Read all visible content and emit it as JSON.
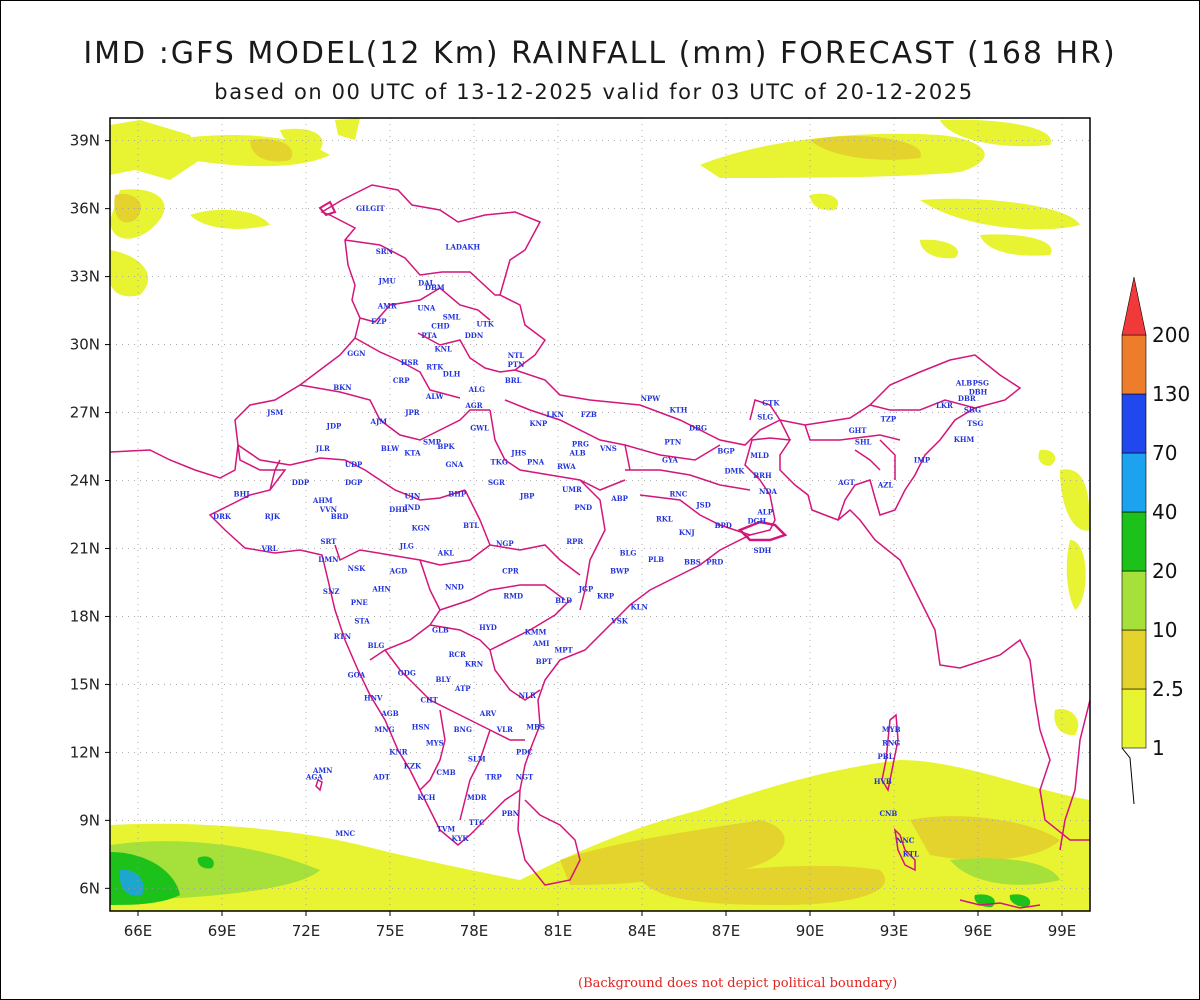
{
  "title": "IMD :GFS MODEL(12 Km) RAINFALL (mm) FORECAST (168 HR)",
  "subtitle": "based on 00 UTC of 13-12-2025 valid for 03 UTC of 20-12-2025",
  "footnote": "(Background does not depict political boundary)",
  "map": {
    "lon_range": [
      65,
      100
    ],
    "lat_range": [
      5,
      40
    ],
    "lon_ticks": [
      "66E",
      "69E",
      "72E",
      "75E",
      "78E",
      "81E",
      "84E",
      "87E",
      "90E",
      "93E",
      "96E",
      "99E"
    ],
    "lat_ticks": [
      "39N",
      "36N",
      "33N",
      "30N",
      "27N",
      "24N",
      "21N",
      "18N",
      "15N",
      "12N",
      "9N",
      "6N"
    ],
    "grid": true,
    "boundary_color": "#d4157a",
    "label_color": "#2233dd"
  },
  "legend": {
    "labels": [
      "1",
      "2.5",
      "10",
      "20",
      "40",
      "70",
      "130",
      "200"
    ],
    "colors": [
      "#e8f432",
      "#e3d32c",
      "#a6e03b",
      "#1cc21a",
      "#1da2ef",
      "#2148ee",
      "#ee7d2b",
      "#f03a3a"
    ]
  },
  "stations": [
    {
      "name": "GILGIT",
      "lon": 74.3,
      "lat": 35.9
    },
    {
      "name": "LADAKH",
      "lon": 77.6,
      "lat": 34.2
    },
    {
      "name": "SRN",
      "lon": 74.8,
      "lat": 34.0
    },
    {
      "name": "JMU",
      "lon": 74.9,
      "lat": 32.7
    },
    {
      "name": "DAL",
      "lon": 76.3,
      "lat": 32.6
    },
    {
      "name": "DBM",
      "lon": 76.6,
      "lat": 32.4
    },
    {
      "name": "AMR",
      "lon": 74.9,
      "lat": 31.6
    },
    {
      "name": "UNA",
      "lon": 76.3,
      "lat": 31.5
    },
    {
      "name": "SML",
      "lon": 77.2,
      "lat": 31.1
    },
    {
      "name": "FZP",
      "lon": 74.6,
      "lat": 30.9
    },
    {
      "name": "CHD",
      "lon": 76.8,
      "lat": 30.7
    },
    {
      "name": "UTK",
      "lon": 78.4,
      "lat": 30.8
    },
    {
      "name": "PTA",
      "lon": 76.4,
      "lat": 30.3
    },
    {
      "name": "DDN",
      "lon": 78.0,
      "lat": 30.3
    },
    {
      "name": "KNL",
      "lon": 76.9,
      "lat": 29.7
    },
    {
      "name": "GGN",
      "lon": 73.8,
      "lat": 29.5
    },
    {
      "name": "NTL",
      "lon": 79.5,
      "lat": 29.4
    },
    {
      "name": "PTN",
      "lon": 79.5,
      "lat": 29.0
    },
    {
      "name": "HSR",
      "lon": 75.7,
      "lat": 29.1
    },
    {
      "name": "RTK",
      "lon": 76.6,
      "lat": 28.9
    },
    {
      "name": "DLH",
      "lon": 77.2,
      "lat": 28.6
    },
    {
      "name": "BRL",
      "lon": 79.4,
      "lat": 28.3
    },
    {
      "name": "BKN",
      "lon": 73.3,
      "lat": 28.0
    },
    {
      "name": "CRP",
      "lon": 75.4,
      "lat": 28.3
    },
    {
      "name": "ALG",
      "lon": 78.1,
      "lat": 27.9
    },
    {
      "name": "ALW",
      "lon": 76.6,
      "lat": 27.6
    },
    {
      "name": "AGR",
      "lon": 78.0,
      "lat": 27.2
    },
    {
      "name": "NPW",
      "lon": 84.3,
      "lat": 27.5
    },
    {
      "name": "GTK",
      "lon": 88.6,
      "lat": 27.3
    },
    {
      "name": "JSM",
      "lon": 70.9,
      "lat": 26.9
    },
    {
      "name": "JPR",
      "lon": 75.8,
      "lat": 26.9
    },
    {
      "name": "LKN",
      "lon": 80.9,
      "lat": 26.8
    },
    {
      "name": "FZB",
      "lon": 82.1,
      "lat": 26.8
    },
    {
      "name": "KTH",
      "lon": 85.3,
      "lat": 27.0
    },
    {
      "name": "SLG",
      "lon": 88.4,
      "lat": 26.7
    },
    {
      "name": "JDP",
      "lon": 73.0,
      "lat": 26.3
    },
    {
      "name": "AJM",
      "lon": 74.6,
      "lat": 26.5
    },
    {
      "name": "KNP",
      "lon": 80.3,
      "lat": 26.4
    },
    {
      "name": "GWL",
      "lon": 78.2,
      "lat": 26.2
    },
    {
      "name": "DBG",
      "lon": 86.0,
      "lat": 26.2
    },
    {
      "name": "GHT",
      "lon": 91.7,
      "lat": 26.1
    },
    {
      "name": "SHL",
      "lon": 91.9,
      "lat": 25.6
    },
    {
      "name": "TZP",
      "lon": 92.8,
      "lat": 26.6
    },
    {
      "name": "ALB",
      "lon": 95.5,
      "lat": 28.2
    },
    {
      "name": "PSG",
      "lon": 96.1,
      "lat": 28.2
    },
    {
      "name": "DBR",
      "lon": 95.6,
      "lat": 27.5
    },
    {
      "name": "DBH",
      "lon": 96.0,
      "lat": 27.8
    },
    {
      "name": "LKR",
      "lon": 94.8,
      "lat": 27.2
    },
    {
      "name": "SBG",
      "lon": 95.8,
      "lat": 27.0
    },
    {
      "name": "TSG",
      "lon": 95.9,
      "lat": 26.4
    },
    {
      "name": "KHM",
      "lon": 95.5,
      "lat": 25.7
    },
    {
      "name": "IMP",
      "lon": 94.0,
      "lat": 24.8
    },
    {
      "name": "AZL",
      "lon": 92.7,
      "lat": 23.7
    },
    {
      "name": "AGT",
      "lon": 91.3,
      "lat": 23.8
    },
    {
      "name": "SMP",
      "lon": 76.5,
      "lat": 25.6
    },
    {
      "name": "BPK",
      "lon": 77.0,
      "lat": 25.4
    },
    {
      "name": "PRG",
      "lon": 81.8,
      "lat": 25.5
    },
    {
      "name": "ALB",
      "lon": 81.7,
      "lat": 25.1
    },
    {
      "name": "VNS",
      "lon": 82.8,
      "lat": 25.3
    },
    {
      "name": "PTN",
      "lon": 85.1,
      "lat": 25.6
    },
    {
      "name": "BGP",
      "lon": 87.0,
      "lat": 25.2
    },
    {
      "name": "MLD",
      "lon": 88.2,
      "lat": 25.0
    },
    {
      "name": "JLR",
      "lon": 72.6,
      "lat": 25.3
    },
    {
      "name": "BLW",
      "lon": 75.0,
      "lat": 25.3
    },
    {
      "name": "KTA",
      "lon": 75.8,
      "lat": 25.1
    },
    {
      "name": "JHS",
      "lon": 79.6,
      "lat": 25.1
    },
    {
      "name": "TKG",
      "lon": 78.9,
      "lat": 24.7
    },
    {
      "name": "PNA",
      "lon": 80.2,
      "lat": 24.7
    },
    {
      "name": "RWA",
      "lon": 81.3,
      "lat": 24.5
    },
    {
      "name": "GYA",
      "lon": 85.0,
      "lat": 24.8
    },
    {
      "name": "DMK",
      "lon": 87.3,
      "lat": 24.3
    },
    {
      "name": "BRH",
      "lon": 88.3,
      "lat": 24.1
    },
    {
      "name": "UDP",
      "lon": 73.7,
      "lat": 24.6
    },
    {
      "name": "GNA",
      "lon": 77.3,
      "lat": 24.6
    },
    {
      "name": "SGR",
      "lon": 78.8,
      "lat": 23.8
    },
    {
      "name": "DDP",
      "lon": 71.8,
      "lat": 23.8
    },
    {
      "name": "DGP",
      "lon": 73.7,
      "lat": 23.8
    },
    {
      "name": "NDA",
      "lon": 88.5,
      "lat": 23.4
    },
    {
      "name": "BHJ",
      "lon": 69.7,
      "lat": 23.3
    },
    {
      "name": "UJN",
      "lon": 75.8,
      "lat": 23.2
    },
    {
      "name": "BHP",
      "lon": 77.4,
      "lat": 23.3
    },
    {
      "name": "JBP",
      "lon": 79.9,
      "lat": 23.2
    },
    {
      "name": "UMR",
      "lon": 81.5,
      "lat": 23.5
    },
    {
      "name": "ABP",
      "lon": 83.2,
      "lat": 23.1
    },
    {
      "name": "RNC",
      "lon": 85.3,
      "lat": 23.3
    },
    {
      "name": "AHM",
      "lon": 72.6,
      "lat": 23.0
    },
    {
      "name": "DHR",
      "lon": 75.3,
      "lat": 22.6
    },
    {
      "name": "IND",
      "lon": 75.8,
      "lat": 22.7
    },
    {
      "name": "PND",
      "lon": 81.9,
      "lat": 22.7
    },
    {
      "name": "JSD",
      "lon": 86.2,
      "lat": 22.8
    },
    {
      "name": "VVN",
      "lon": 72.8,
      "lat": 22.6
    },
    {
      "name": "BRD",
      "lon": 73.2,
      "lat": 22.3
    },
    {
      "name": "DRK",
      "lon": 69.0,
      "lat": 22.3
    },
    {
      "name": "RJK",
      "lon": 70.8,
      "lat": 22.3
    },
    {
      "name": "RKL",
      "lon": 84.8,
      "lat": 22.2
    },
    {
      "name": "ALP",
      "lon": 88.4,
      "lat": 22.5
    },
    {
      "name": "DGH",
      "lon": 88.1,
      "lat": 22.1
    },
    {
      "name": "KGN",
      "lon": 76.1,
      "lat": 21.8
    },
    {
      "name": "BTL",
      "lon": 77.9,
      "lat": 21.9
    },
    {
      "name": "KNJ",
      "lon": 85.6,
      "lat": 21.6
    },
    {
      "name": "BPD",
      "lon": 86.9,
      "lat": 21.9
    },
    {
      "name": "SRT",
      "lon": 72.8,
      "lat": 21.2
    },
    {
      "name": "JLG",
      "lon": 75.6,
      "lat": 21.0
    },
    {
      "name": "NGP",
      "lon": 79.1,
      "lat": 21.1
    },
    {
      "name": "RPR",
      "lon": 81.6,
      "lat": 21.2
    },
    {
      "name": "SDH",
      "lon": 88.3,
      "lat": 20.8
    },
    {
      "name": "VRL",
      "lon": 70.7,
      "lat": 20.9
    },
    {
      "name": "AKL",
      "lon": 77.0,
      "lat": 20.7
    },
    {
      "name": "BLG",
      "lon": 83.5,
      "lat": 20.7
    },
    {
      "name": "PLB",
      "lon": 84.5,
      "lat": 20.4
    },
    {
      "name": "BBS",
      "lon": 85.8,
      "lat": 20.3
    },
    {
      "name": "PRD",
      "lon": 86.6,
      "lat": 20.3
    },
    {
      "name": "DMN",
      "lon": 72.8,
      "lat": 20.4
    },
    {
      "name": "NSK",
      "lon": 73.8,
      "lat": 20.0
    },
    {
      "name": "AGD",
      "lon": 75.3,
      "lat": 19.9
    },
    {
      "name": "CPR",
      "lon": 79.3,
      "lat": 19.9
    },
    {
      "name": "BWP",
      "lon": 83.2,
      "lat": 19.9
    },
    {
      "name": "NND",
      "lon": 77.3,
      "lat": 19.2
    },
    {
      "name": "AHN",
      "lon": 74.7,
      "lat": 19.1
    },
    {
      "name": "JGP",
      "lon": 82.0,
      "lat": 19.1
    },
    {
      "name": "KRP",
      "lon": 82.7,
      "lat": 18.8
    },
    {
      "name": "SNZ",
      "lon": 72.9,
      "lat": 19.0
    },
    {
      "name": "RMD",
      "lon": 79.4,
      "lat": 18.8
    },
    {
      "name": "BLD",
      "lon": 81.2,
      "lat": 18.6
    },
    {
      "name": "PNE",
      "lon": 73.9,
      "lat": 18.5
    },
    {
      "name": "KLN",
      "lon": 83.9,
      "lat": 18.3
    },
    {
      "name": "VSK",
      "lon": 83.2,
      "lat": 17.7
    },
    {
      "name": "STA",
      "lon": 74.0,
      "lat": 17.7
    },
    {
      "name": "HYD",
      "lon": 78.5,
      "lat": 17.4
    },
    {
      "name": "KMM",
      "lon": 80.2,
      "lat": 17.2
    },
    {
      "name": "GLB",
      "lon": 76.8,
      "lat": 17.3
    },
    {
      "name": "RTN",
      "lon": 73.3,
      "lat": 17.0
    },
    {
      "name": "AMI",
      "lon": 80.4,
      "lat": 16.7
    },
    {
      "name": "MPT",
      "lon": 81.2,
      "lat": 16.4
    },
    {
      "name": "BLG",
      "lon": 74.5,
      "lat": 16.6
    },
    {
      "name": "RCR",
      "lon": 77.4,
      "lat": 16.2
    },
    {
      "name": "BPT",
      "lon": 80.5,
      "lat": 15.9
    },
    {
      "name": "KRN",
      "lon": 78.0,
      "lat": 15.8
    },
    {
      "name": "GOA",
      "lon": 73.8,
      "lat": 15.3
    },
    {
      "name": "GDG",
      "lon": 75.6,
      "lat": 15.4
    },
    {
      "name": "BLY",
      "lon": 76.9,
      "lat": 15.1
    },
    {
      "name": "ATP",
      "lon": 77.6,
      "lat": 14.7
    },
    {
      "name": "NLR",
      "lon": 79.9,
      "lat": 14.4
    },
    {
      "name": "HNV",
      "lon": 74.4,
      "lat": 14.3
    },
    {
      "name": "CHT",
      "lon": 76.4,
      "lat": 14.2
    },
    {
      "name": "AGB",
      "lon": 75.0,
      "lat": 13.6
    },
    {
      "name": "ARV",
      "lon": 78.5,
      "lat": 13.6
    },
    {
      "name": "MNG",
      "lon": 74.8,
      "lat": 12.9
    },
    {
      "name": "HSN",
      "lon": 76.1,
      "lat": 13.0
    },
    {
      "name": "BNG",
      "lon": 77.6,
      "lat": 12.9
    },
    {
      "name": "VLR",
      "lon": 79.1,
      "lat": 12.9
    },
    {
      "name": "MBS",
      "lon": 80.2,
      "lat": 13.0
    },
    {
      "name": "MYS",
      "lon": 76.6,
      "lat": 12.3
    },
    {
      "name": "KNR",
      "lon": 75.3,
      "lat": 11.9
    },
    {
      "name": "SLM",
      "lon": 78.1,
      "lat": 11.6
    },
    {
      "name": "PDC",
      "lon": 79.8,
      "lat": 11.9
    },
    {
      "name": "KZK",
      "lon": 75.8,
      "lat": 11.3
    },
    {
      "name": "CMB",
      "lon": 77.0,
      "lat": 11.0
    },
    {
      "name": "TRP",
      "lon": 78.7,
      "lat": 10.8
    },
    {
      "name": "NGT",
      "lon": 79.8,
      "lat": 10.8
    },
    {
      "name": "AMN",
      "lon": 72.6,
      "lat": 11.1
    },
    {
      "name": "AGA",
      "lon": 72.3,
      "lat": 10.8
    },
    {
      "name": "ADT",
      "lon": 74.7,
      "lat": 10.8
    },
    {
      "name": "KCH",
      "lon": 76.3,
      "lat": 9.9
    },
    {
      "name": "MDR",
      "lon": 78.1,
      "lat": 9.9
    },
    {
      "name": "PBN",
      "lon": 79.3,
      "lat": 9.2
    },
    {
      "name": "TVM",
      "lon": 77.0,
      "lat": 8.5
    },
    {
      "name": "TTC",
      "lon": 78.1,
      "lat": 8.8
    },
    {
      "name": "KYK",
      "lon": 77.5,
      "lat": 8.1
    },
    {
      "name": "MNC",
      "lon": 73.4,
      "lat": 8.3
    },
    {
      "name": "MYB",
      "lon": 92.9,
      "lat": 12.9
    },
    {
      "name": "RNG",
      "lon": 92.9,
      "lat": 12.3
    },
    {
      "name": "PBL",
      "lon": 92.7,
      "lat": 11.7
    },
    {
      "name": "HVB",
      "lon": 92.6,
      "lat": 10.6
    },
    {
      "name": "CNB",
      "lon": 92.8,
      "lat": 9.2
    },
    {
      "name": "NNC",
      "lon": 93.4,
      "lat": 8.0
    },
    {
      "name": "KTL",
      "lon": 93.6,
      "lat": 7.4
    }
  ]
}
